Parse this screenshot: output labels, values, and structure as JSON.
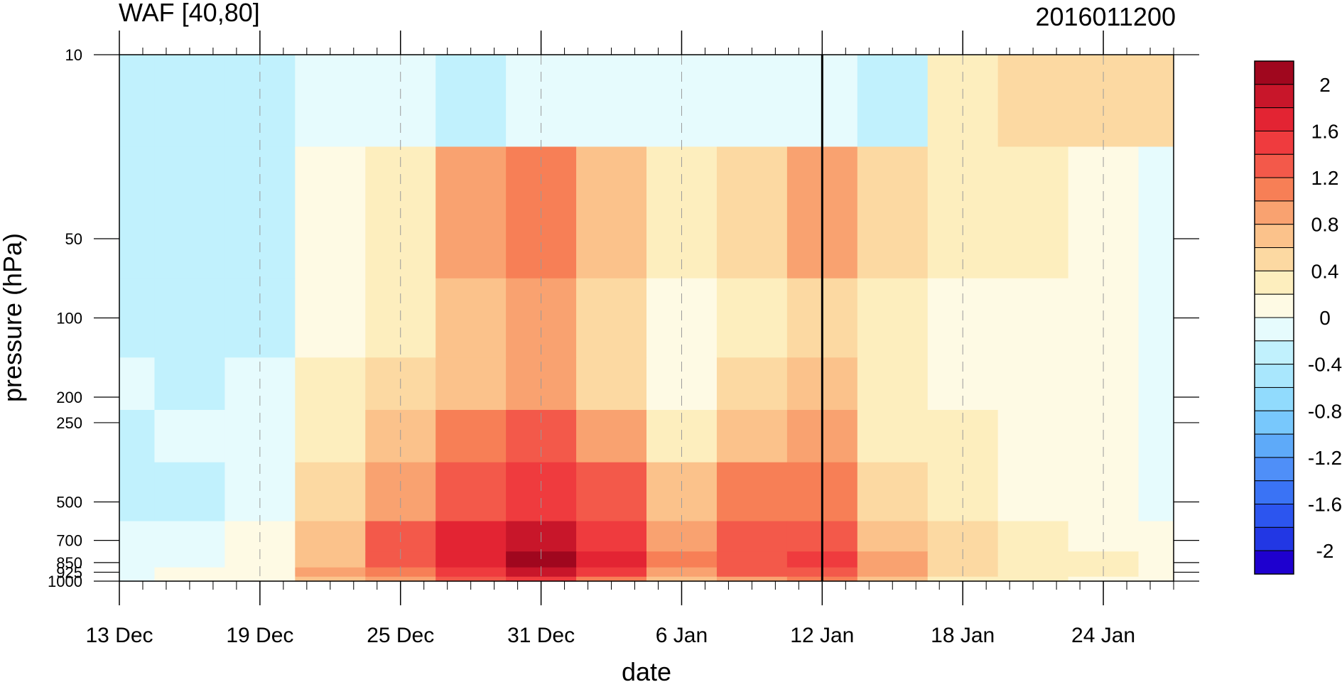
{
  "chart_data": {
    "type": "heatmap",
    "title": "WAF [40,80]",
    "title_right": "2016011200",
    "xlabel": "date",
    "ylabel": "pressure (hPa)",
    "x_ticks": [
      {
        "date": "2015-12-13",
        "label": "13 Dec"
      },
      {
        "date": "2015-12-19",
        "label": "19 Dec"
      },
      {
        "date": "2015-12-25",
        "label": "25 Dec"
      },
      {
        "date": "2015-12-31",
        "label": "31 Dec"
      },
      {
        "date": "2016-01-06",
        "label": "6 Jan"
      },
      {
        "date": "2016-01-12",
        "label": "12 Jan"
      },
      {
        "date": "2016-01-18",
        "label": "18 Jan"
      },
      {
        "date": "2016-01-24",
        "label": "24 Jan"
      }
    ],
    "xlim": [
      "2015-12-13",
      "2016-01-27"
    ],
    "y_ticks": [
      10,
      50,
      100,
      200,
      250,
      500,
      700,
      850,
      925,
      1000
    ],
    "y_tick_labels": [
      "10",
      "50",
      "100",
      "200",
      "250",
      "500",
      "700",
      "850",
      "925",
      "1000"
    ],
    "ylim": [
      1000,
      10
    ],
    "y_scale": "log",
    "current_date_line": "2016-01-12",
    "colorbar": {
      "labels": [
        "2",
        "1.6",
        "1.2",
        "0.8",
        "0.4",
        "0",
        "-0.4",
        "-0.8",
        "-1.2",
        "-1.6",
        "-2"
      ],
      "levels": [
        -2.2,
        -2,
        -1.8,
        -1.6,
        -1.4,
        -1.2,
        -1,
        -0.8,
        -0.6,
        -0.4,
        -0.2,
        0,
        0.2,
        0.4,
        0.6,
        0.8,
        1,
        1.2,
        1.4,
        1.6,
        1.8,
        2,
        2.2
      ],
      "colors": [
        "#1e00cf",
        "#2237e4",
        "#2c55ef",
        "#3a73f5",
        "#4f8ff8",
        "#5eaaf9",
        "#78c8fc",
        "#91dbfd",
        "#a9e7fd",
        "#c1f1fd",
        "#e6fbfd",
        "#fefae4",
        "#fdeebe",
        "#fcd9a2",
        "#fbc28b",
        "#f9a270",
        "#f77f56",
        "#f3594a",
        "#ef3b3e",
        "#e32433",
        "#c8162a",
        "#a0071e"
      ]
    },
    "grid": {
      "day_offsets": [
        0,
        3,
        6,
        9,
        12,
        15,
        18,
        21,
        24,
        27,
        30,
        33,
        36,
        39,
        42,
        45
      ],
      "pressures": [
        10,
        50,
        100,
        200,
        250,
        500,
        700,
        850,
        925,
        1000
      ],
      "values": [
        [
          -0.3,
          -0.35,
          -0.25,
          -0.05,
          -0.1,
          -0.25,
          -0.15,
          -0.12,
          -0.05,
          -0.1,
          -0.15,
          -0.25,
          0.2,
          0.4,
          0.5,
          0.4
        ],
        [
          -0.4,
          -0.4,
          -0.3,
          0.05,
          0.2,
          0.8,
          1.0,
          0.6,
          0.2,
          0.5,
          0.8,
          0.4,
          0.3,
          0.2,
          0.1,
          -0.1
        ],
        [
          -0.3,
          -0.4,
          -0.3,
          0.1,
          0.3,
          0.6,
          0.8,
          0.55,
          0.1,
          0.3,
          0.5,
          0.2,
          0.1,
          0.05,
          0.0,
          -0.2
        ],
        [
          -0.2,
          -0.3,
          -0.2,
          0.2,
          0.5,
          0.6,
          0.8,
          0.5,
          0.05,
          0.4,
          0.7,
          0.3,
          0.1,
          0.1,
          0.05,
          -0.1
        ],
        [
          -0.25,
          -0.2,
          -0.1,
          0.3,
          0.7,
          1.0,
          1.3,
          0.9,
          0.3,
          0.6,
          0.8,
          0.3,
          0.2,
          0.05,
          0.0,
          -0.15
        ],
        [
          -0.35,
          -0.3,
          -0.15,
          0.4,
          0.9,
          1.2,
          1.5,
          1.2,
          0.6,
          1.0,
          1.1,
          0.5,
          0.3,
          0.1,
          0.05,
          -0.1
        ],
        [
          -0.2,
          -0.1,
          0.05,
          0.6,
          1.3,
          1.6,
          1.8,
          1.4,
          0.8,
          1.2,
          1.3,
          0.7,
          0.4,
          0.2,
          0.1,
          0.0
        ],
        [
          -0.15,
          -0.05,
          0.1,
          0.7,
          1.2,
          1.7,
          2.0,
          1.6,
          1.0,
          1.3,
          1.4,
          0.9,
          0.5,
          0.3,
          0.2,
          0.1
        ],
        [
          -0.1,
          0.0,
          0.15,
          0.8,
          1.1,
          1.5,
          1.8,
          1.5,
          0.9,
          1.2,
          1.3,
          0.8,
          0.4,
          0.3,
          0.2,
          0.1
        ],
        [
          -0.05,
          0.0,
          0.1,
          0.6,
          0.9,
          1.2,
          1.4,
          1.1,
          0.7,
          0.9,
          1.0,
          0.6,
          0.3,
          0.2,
          0.1,
          0.05
        ]
      ]
    }
  }
}
